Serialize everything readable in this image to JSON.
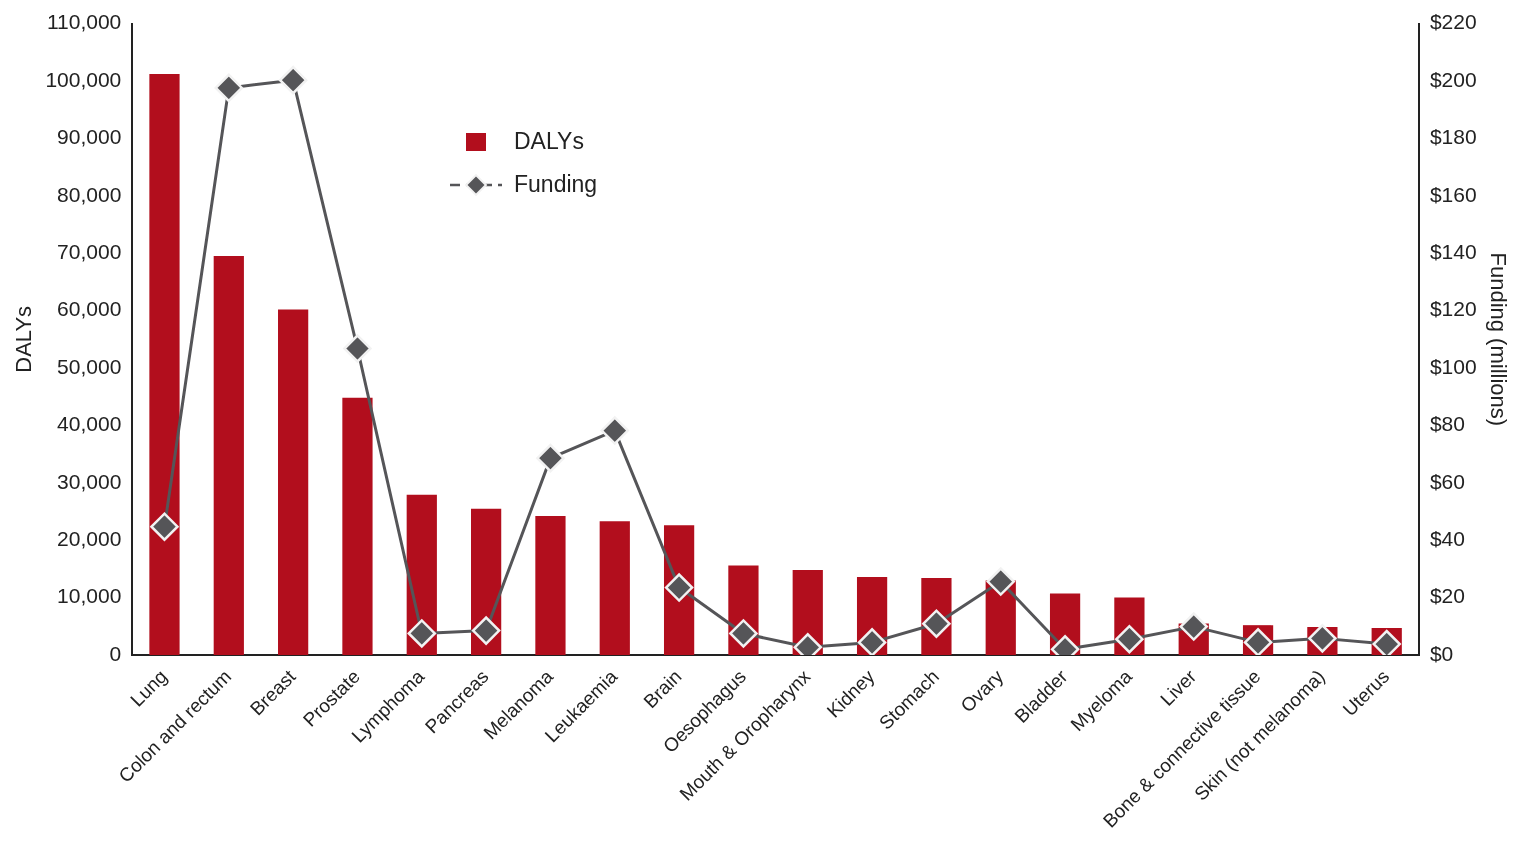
{
  "chart_data": {
    "type": "bar",
    "ylabel": "DALYs",
    "y2label": "Funding (millions)",
    "categories": [
      "Lung",
      "Colon and rectum",
      "Breast",
      "Prostate",
      "Lymphoma",
      "Pancreas",
      "Melanoma",
      "Leukaemia",
      "Brain",
      "Oesophagus",
      "Mouth & Oropharynx",
      "Kidney",
      "Stomach",
      "Ovary",
      "Bladder",
      "Myeloma",
      "Liver",
      "Bone & connective tissue",
      "Skin (not melanoma)",
      "Uterus"
    ],
    "series": [
      {
        "name": "DALYs",
        "color": "#b20e1d",
        "values": [
          101200,
          69500,
          60200,
          44800,
          27900,
          25500,
          24200,
          23300,
          22600,
          15600,
          14800,
          13600,
          13400,
          13000,
          10700,
          10000,
          5500,
          5200,
          4900,
          4700
        ]
      },
      {
        "name": "Funding",
        "type": "line",
        "axis": "y2",
        "color": "#555558",
        "values": [
          44.7,
          197.6,
          200.3,
          106.8,
          7.5,
          8.5,
          68.6,
          78.2,
          23.5,
          7.5,
          2.7,
          4.4,
          10.9,
          25.6,
          2,
          5.5,
          9.9,
          4.4,
          5.8,
          3.8
        ]
      }
    ],
    "ylim": [
      0,
      110000
    ],
    "yticks": [
      {
        "value": 0,
        "label": "0"
      },
      {
        "value": 10000,
        "label": "10,000"
      },
      {
        "value": 20000,
        "label": "20,000"
      },
      {
        "value": 30000,
        "label": "30,000"
      },
      {
        "value": 40000,
        "label": "40,000"
      },
      {
        "value": 50000,
        "label": "50,000"
      },
      {
        "value": 60000,
        "label": "60,000"
      },
      {
        "value": 70000,
        "label": "70,000"
      },
      {
        "value": 80000,
        "label": "80,000"
      },
      {
        "value": 90000,
        "label": "90,000"
      },
      {
        "value": 100000,
        "label": "100,000"
      },
      {
        "value": 110000,
        "label": "110,000"
      }
    ],
    "y2lim": [
      0,
      220
    ],
    "y2ticks": [
      {
        "value": 0,
        "label": "$0"
      },
      {
        "value": 20,
        "label": "$20"
      },
      {
        "value": 40,
        "label": "$40"
      },
      {
        "value": 60,
        "label": "$60"
      },
      {
        "value": 80,
        "label": "$80"
      },
      {
        "value": 100,
        "label": "$100"
      },
      {
        "value": 120,
        "label": "$120"
      },
      {
        "value": 140,
        "label": "$140"
      },
      {
        "value": 160,
        "label": "$160"
      },
      {
        "value": 180,
        "label": "$180"
      },
      {
        "value": 200,
        "label": "$200"
      },
      {
        "value": 220,
        "label": "$220"
      }
    ],
    "grid": false,
    "legend": "top left",
    "marker": "diamond",
    "line_style": "solid"
  }
}
